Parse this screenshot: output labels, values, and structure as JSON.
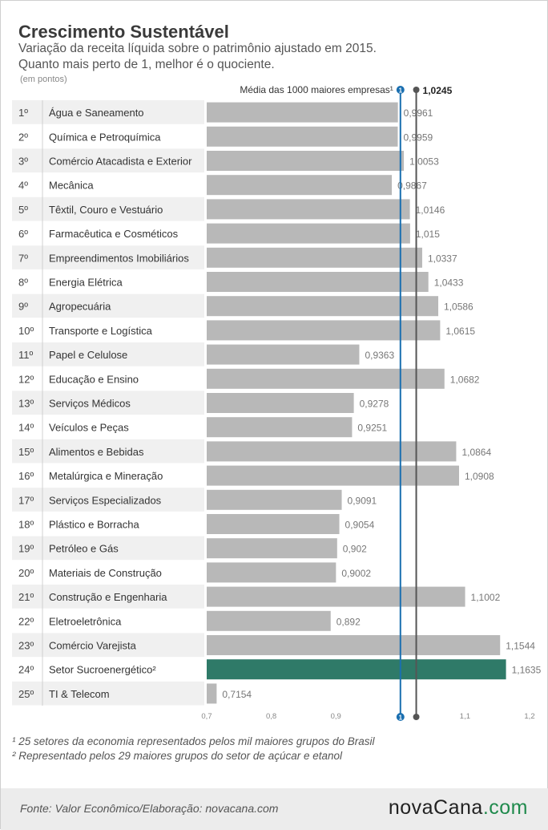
{
  "header": {
    "title": "Crescimento Sustentável",
    "subtitle_line1": "Variação da receita líquida sobre o patrimônio ajustado em 2015.",
    "subtitle_line2": "Quanto mais perto de 1, melhor é o quociente.",
    "units": "(em pontos)"
  },
  "colors": {
    "bar": "#b8b8b8",
    "highlight_bar": "#2f7a68",
    "average_line": "#1a6fb0",
    "reference_line": "#555555",
    "stripe": "#f0f0f0"
  },
  "chart_data": {
    "type": "bar",
    "orientation": "horizontal",
    "xlim": [
      0.7,
      1.2
    ],
    "xticks": [
      "0,7",
      "0,8",
      "0,9",
      "1",
      "1,1",
      "1,2"
    ],
    "xtick_values": [
      0.7,
      0.8,
      0.9,
      1.0,
      1.1,
      1.2
    ],
    "ranks": [
      "1º",
      "2º",
      "3º",
      "4º",
      "5º",
      "6º",
      "7º",
      "8º",
      "9º",
      "10º",
      "11º",
      "12º",
      "13º",
      "14º",
      "15º",
      "16º",
      "17º",
      "18º",
      "19º",
      "20º",
      "21º",
      "22º",
      "23º",
      "24º",
      "25º"
    ],
    "categories": [
      "Água e Saneamento",
      "Química e Petroquímica",
      "Comércio Atacadista e Exterior",
      "Mecânica",
      "Têxtil, Couro e Vestuário",
      "Farmacêutica e Cosméticos",
      "Empreendimentos Imobiliários",
      "Energia Elétrica",
      "Agropecuária",
      "Transporte e Logística",
      "Papel e Celulose",
      "Educação e Ensino",
      "Serviços Médicos",
      "Veículos e Peças",
      "Alimentos e Bebidas",
      "Metalúrgica e Mineração",
      "Serviços Especializados",
      "Plástico e Borracha",
      "Petróleo e Gás",
      "Materiais de Construção",
      "Construção e Engenharia",
      "Eletroeletrônica",
      "Comércio Varejista",
      "Setor Sucroenergético²",
      "TI & Telecom"
    ],
    "values": [
      0.9961,
      0.9959,
      1.0053,
      0.9867,
      1.0146,
      1.015,
      1.0337,
      1.0433,
      1.0586,
      1.0615,
      0.9363,
      1.0682,
      0.9278,
      0.9251,
      1.0864,
      1.0908,
      0.9091,
      0.9054,
      0.902,
      0.9002,
      1.1002,
      0.892,
      1.1544,
      1.1635,
      0.7154
    ],
    "value_labels": [
      "0,9961",
      "0,9959",
      "1,0053",
      "0,9867",
      "1,0146",
      "1,015",
      "1,0337",
      "1,0433",
      "1,0586",
      "1,0615",
      "0,9363",
      "1,0682",
      "0,9278",
      "0,9251",
      "1,0864",
      "1,0908",
      "0,9091",
      "0,9054",
      "0,902",
      "0,9002",
      "1,1002",
      "0,892",
      "1,1544",
      "1,1635",
      "0,7154"
    ],
    "highlight_index": 23,
    "reference_lines": [
      {
        "label": "Média das 1000 maiores empresas¹",
        "marker": "1",
        "value": 1.0
      },
      {
        "label": "1,0245",
        "value": 1.0245
      }
    ]
  },
  "footnotes": [
    "¹ 25 setores da economia representados pelos mil maiores grupos do Brasil",
    "² Representado pelos 29 maiores grupos do setor de açúcar e etanol"
  ],
  "footer": {
    "source": "Fonte:  Valor  Econômico/Elaboração: novacana.com",
    "logo_main": "novaCana",
    "logo_suffix": ".com"
  }
}
